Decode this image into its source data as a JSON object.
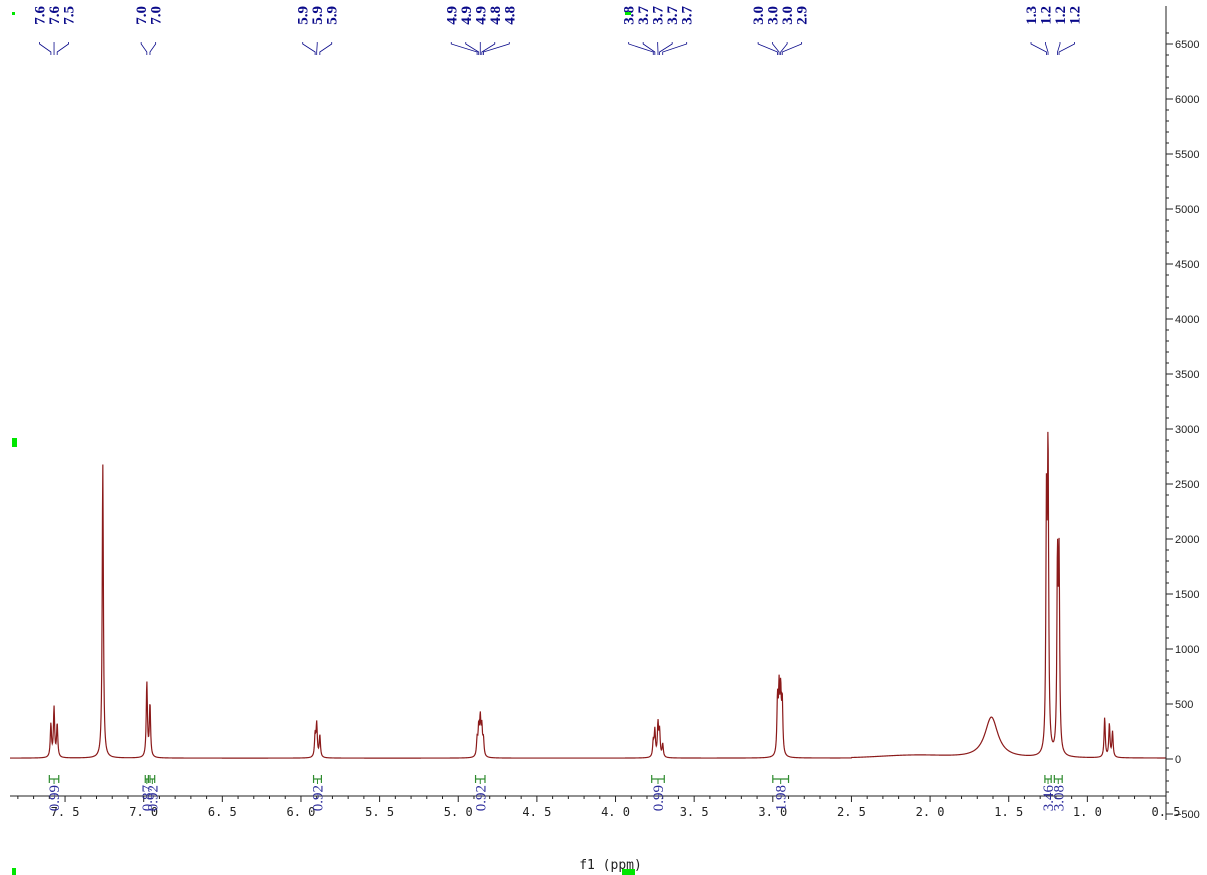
{
  "chart_data": {
    "type": "line",
    "xlabel": "f1 (ppm)",
    "xlim": [
      7.85,
      0.5
    ],
    "ylim": [
      -600,
      6600
    ],
    "x_ticks": [
      "7.5",
      "7.0",
      "6.5",
      "6.0",
      "5.5",
      "5.0",
      "4.5",
      "4.0",
      "3.5",
      "3.0",
      "2.5",
      "2.0",
      "1.5",
      "1.0",
      "0.5"
    ],
    "y_ticks": [
      "6500",
      "6000",
      "5500",
      "5000",
      "4500",
      "4000",
      "3500",
      "3000",
      "2500",
      "2000",
      "1500",
      "1000",
      "500",
      "0",
      "-500"
    ],
    "peak_groups": [
      {
        "labels": [
          "7.6",
          "7.6",
          "7.5"
        ],
        "shifts": [
          7.59,
          7.57,
          7.55
        ]
      },
      {
        "labels": [
          "7.0",
          "7.0"
        ],
        "shifts": [
          6.98,
          6.96
        ]
      },
      {
        "labels": [
          "5.9",
          "5.9",
          "5.9"
        ],
        "shifts": [
          5.91,
          5.9,
          5.88
        ]
      },
      {
        "labels": [
          "4.9",
          "4.9",
          "4.9",
          "4.8",
          "4.8"
        ],
        "shifts": [
          4.88,
          4.87,
          4.86,
          4.85,
          4.84
        ]
      },
      {
        "labels": [
          "3.8",
          "3.7",
          "3.7",
          "3.7",
          "3.7"
        ],
        "shifts": [
          3.76,
          3.75,
          3.73,
          3.72,
          3.7
        ]
      },
      {
        "labels": [
          "3.0",
          "3.0",
          "3.0",
          "2.9"
        ],
        "shifts": [
          2.97,
          2.96,
          2.95,
          2.94
        ]
      },
      {
        "labels": [
          "1.3",
          "1.2",
          "1.2",
          "1.2"
        ],
        "shifts": [
          1.26,
          1.25,
          1.19,
          1.18
        ]
      }
    ],
    "integrals": [
      {
        "value": "0.99",
        "from": 7.6,
        "to": 7.54
      },
      {
        "value": "0.87",
        "from": 6.99,
        "to": 6.97
      },
      {
        "value": "0.92",
        "from": 6.96,
        "to": 6.93
      },
      {
        "value": "0.92",
        "from": 5.92,
        "to": 5.87
      },
      {
        "value": "0.92",
        "from": 4.89,
        "to": 4.83
      },
      {
        "value": "0.99",
        "from": 3.77,
        "to": 3.69
      },
      {
        "value": "1.98",
        "from": 3.0,
        "to": 2.9
      },
      {
        "value": "3.46",
        "from": 1.27,
        "to": 1.23
      },
      {
        "value": "3.08",
        "from": 1.21,
        "to": 1.16
      }
    ],
    "spectrum_peaks": [
      {
        "ppm": 7.59,
        "height": 300
      },
      {
        "ppm": 7.57,
        "height": 450
      },
      {
        "ppm": 7.55,
        "height": 300
      },
      {
        "ppm": 7.26,
        "height": 2680
      },
      {
        "ppm": 6.98,
        "height": 680
      },
      {
        "ppm": 6.96,
        "height": 480
      },
      {
        "ppm": 5.91,
        "height": 200
      },
      {
        "ppm": 5.9,
        "height": 300
      },
      {
        "ppm": 5.88,
        "height": 200
      },
      {
        "ppm": 4.88,
        "height": 150
      },
      {
        "ppm": 4.87,
        "height": 250
      },
      {
        "ppm": 4.86,
        "height": 330
      },
      {
        "ppm": 4.85,
        "height": 250
      },
      {
        "ppm": 4.84,
        "height": 150
      },
      {
        "ppm": 3.76,
        "height": 140
      },
      {
        "ppm": 3.75,
        "height": 240
      },
      {
        "ppm": 3.73,
        "height": 300
      },
      {
        "ppm": 3.72,
        "height": 230
      },
      {
        "ppm": 3.7,
        "height": 120
      },
      {
        "ppm": 2.97,
        "height": 500
      },
      {
        "ppm": 2.96,
        "height": 560
      },
      {
        "ppm": 2.95,
        "height": 540
      },
      {
        "ppm": 2.94,
        "height": 480
      },
      {
        "ppm": 1.61,
        "height": 370
      },
      {
        "ppm": 1.26,
        "height": 2150
      },
      {
        "ppm": 1.25,
        "height": 2650
      },
      {
        "ppm": 1.19,
        "height": 1700
      },
      {
        "ppm": 1.18,
        "height": 1700
      },
      {
        "ppm": 0.89,
        "height": 360
      },
      {
        "ppm": 0.86,
        "height": 300
      },
      {
        "ppm": 0.84,
        "height": 230
      }
    ],
    "colors": {
      "spectrum": "#8b1a1a",
      "peak_labels": "#0a0a8a",
      "integral": "#2e8b2e",
      "marker": "#00e600",
      "axis": "#222222"
    }
  }
}
